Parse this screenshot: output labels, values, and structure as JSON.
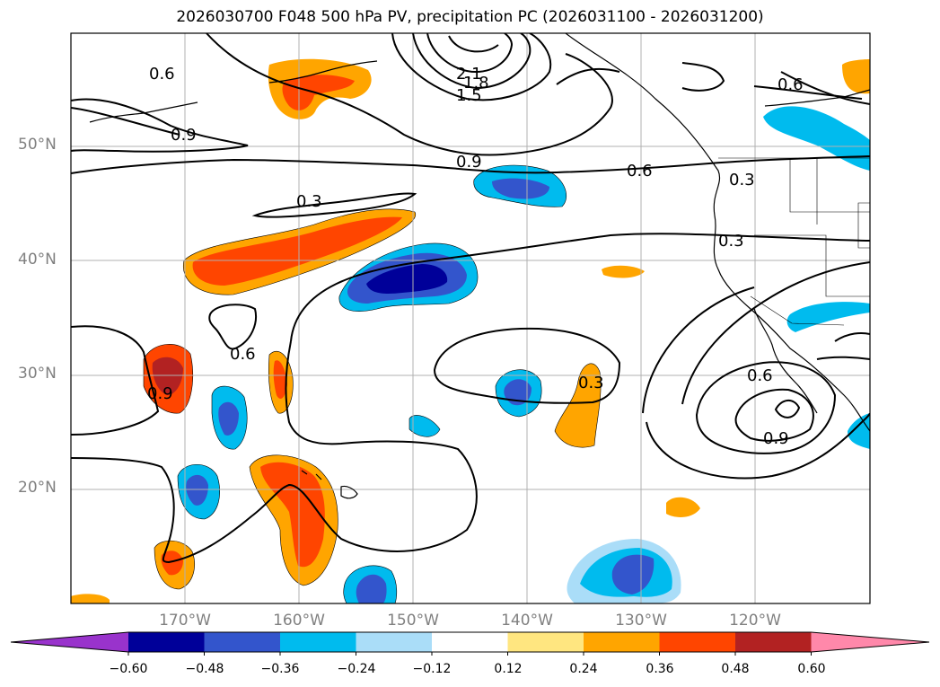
{
  "title": "2026030700 F048 500 hPa PV, precipitation PC (2026031100 - 2026031200)",
  "map": {
    "lat_labels": [
      "50°N",
      "40°N",
      "30°N",
      "20°N"
    ],
    "lon_labels": [
      "170°W",
      "160°W",
      "150°W",
      "140°W",
      "130°W",
      "120°W"
    ],
    "lat_range": [
      10,
      60
    ],
    "lon_range": [
      -180,
      -110
    ],
    "pv_contour_labels": [
      "0.6",
      "0.9",
      "2.1",
      "1.8",
      "1.5",
      "0.9",
      "0.6",
      "0.3",
      "0.3",
      "0.3",
      "0.6",
      "0.9",
      "0.6",
      "0.9",
      "0.3",
      "0.6"
    ]
  },
  "colorbar": {
    "ticks": [
      "−0.60",
      "−0.48",
      "−0.36",
      "−0.24",
      "−0.12",
      "0.12",
      "0.24",
      "0.36",
      "0.48",
      "0.60"
    ],
    "colors": [
      "#9933cc",
      "#000099",
      "#3355cc",
      "#00bbee",
      "#aaddf8",
      "#ffffff",
      "#ffe680",
      "#ffa500",
      "#ff4500",
      "#b22222",
      "#ff88aa"
    ]
  }
}
